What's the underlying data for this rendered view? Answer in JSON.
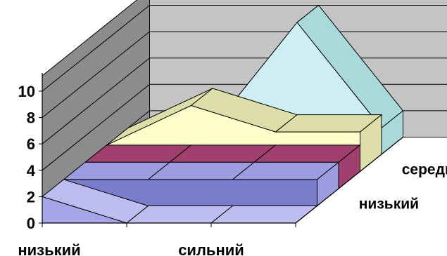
{
  "chart_data": {
    "type": "area",
    "three_d": true,
    "categories": [
      "низький",
      "",
      "сильний",
      ""
    ],
    "category_labels_shown": [
      "низький",
      "сильний"
    ],
    "series": [
      {
        "name": "",
        "values": [
          2,
          0,
          0,
          0
        ]
      },
      {
        "name": "низький",
        "values": [
          2,
          2,
          2,
          2
        ]
      },
      {
        "name": "",
        "values": [
          2,
          2,
          2,
          2
        ]
      },
      {
        "name": "середній",
        "values": [
          2,
          5,
          3,
          3
        ]
      },
      {
        "name": "",
        "values": [
          0,
          2,
          10,
          2
        ]
      }
    ],
    "ylim": [
      0,
      10
    ],
    "yticks": [
      0,
      2,
      4,
      6,
      8,
      10
    ],
    "grid": true,
    "legend": "none",
    "colors": {
      "wall_side": "#8c8c8c",
      "wall_back": "#c4c4c4",
      "grid_line": "#000000",
      "series": [
        "#a5a5e8",
        "#7b7bcc",
        "#8c2e5a",
        "#ffffcc",
        "#cceef4"
      ],
      "series_top": [
        "#bdbdf0",
        "#9c9ce0",
        "#a0406e",
        "#dedea8",
        "#a9d9da"
      ]
    }
  }
}
